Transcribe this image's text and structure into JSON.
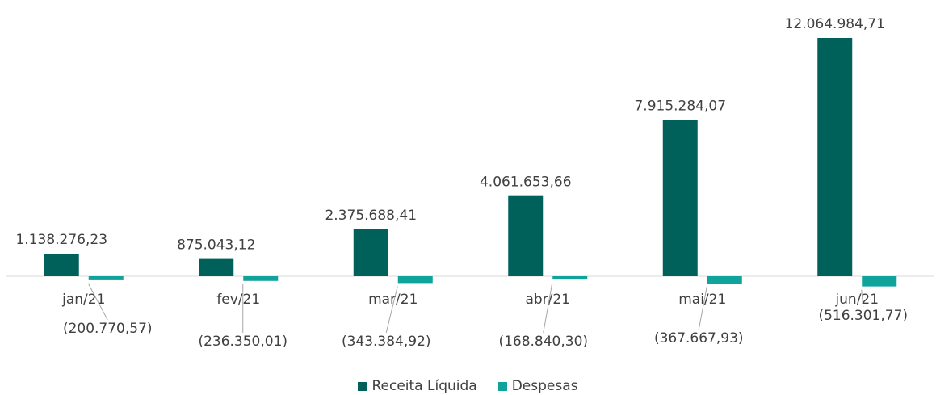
{
  "chart_data": {
    "type": "bar",
    "title": "",
    "xlabel": "",
    "ylabel": "",
    "categories": [
      "jan/21",
      "fev/21",
      "mar/21",
      "abr/21",
      "mai/21",
      "jun/21"
    ],
    "series": [
      {
        "name": "Receita Líquida",
        "color": "#00605A",
        "values": [
          1138276.23,
          875043.12,
          2375688.41,
          4061653.66,
          7915284.07,
          12064984.71
        ],
        "labels": [
          "1.138.276,23",
          "875.043,12",
          "2.375.688,41",
          "4.061.653,66",
          "7.915.284,07",
          "12.064.984,71"
        ]
      },
      {
        "name": "Despesas",
        "color": "#0FA39B",
        "values": [
          -200770.57,
          -236350.01,
          -343384.92,
          -168840.3,
          -367667.93,
          -516301.77
        ],
        "labels": [
          "(200.770,57)",
          "(236.350,01)",
          "(343.384,92)",
          "(168.840,30)",
          "(367.667,93)",
          "(516.301,77)"
        ]
      }
    ],
    "ylim": [
      -520000,
      12100000
    ],
    "grid": false,
    "legend_position": "bottom"
  }
}
